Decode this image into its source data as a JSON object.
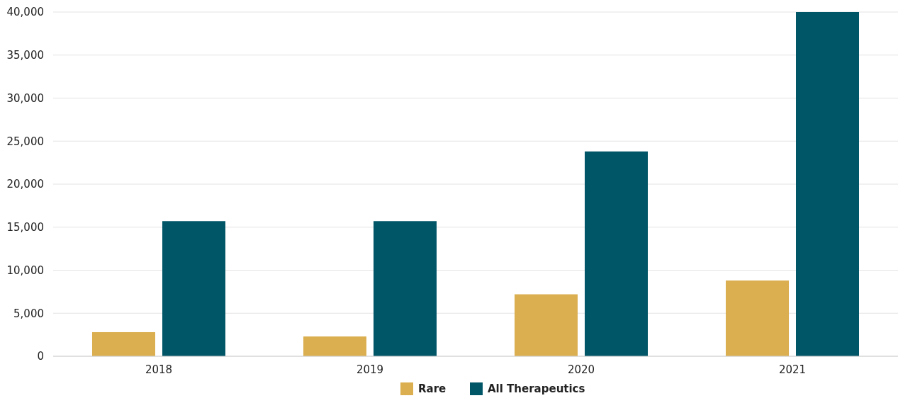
{
  "chart_data": {
    "type": "bar",
    "categories": [
      "2018",
      "2019",
      "2020",
      "2021"
    ],
    "series": [
      {
        "name": "Rare",
        "color": "#dbaf50",
        "values": [
          2800,
          2300,
          7200,
          8800
        ]
      },
      {
        "name": "All Therapeutics",
        "color": "#005566",
        "values": [
          15700,
          15700,
          23800,
          40000
        ]
      }
    ],
    "ylim": [
      0,
      40000
    ],
    "yticks": [
      {
        "value": 0,
        "label": "0"
      },
      {
        "value": 5000,
        "label": "5,000"
      },
      {
        "value": 10000,
        "label": "10,000"
      },
      {
        "value": 15000,
        "label": "15,000"
      },
      {
        "value": 20000,
        "label": "20,000"
      },
      {
        "value": 25000,
        "label": "25,000"
      },
      {
        "value": 30000,
        "label": "30,000"
      },
      {
        "value": 35000,
        "label": "35,000"
      },
      {
        "value": 40000,
        "label": "40,000"
      }
    ],
    "grid": "y",
    "legend": "bottom"
  }
}
